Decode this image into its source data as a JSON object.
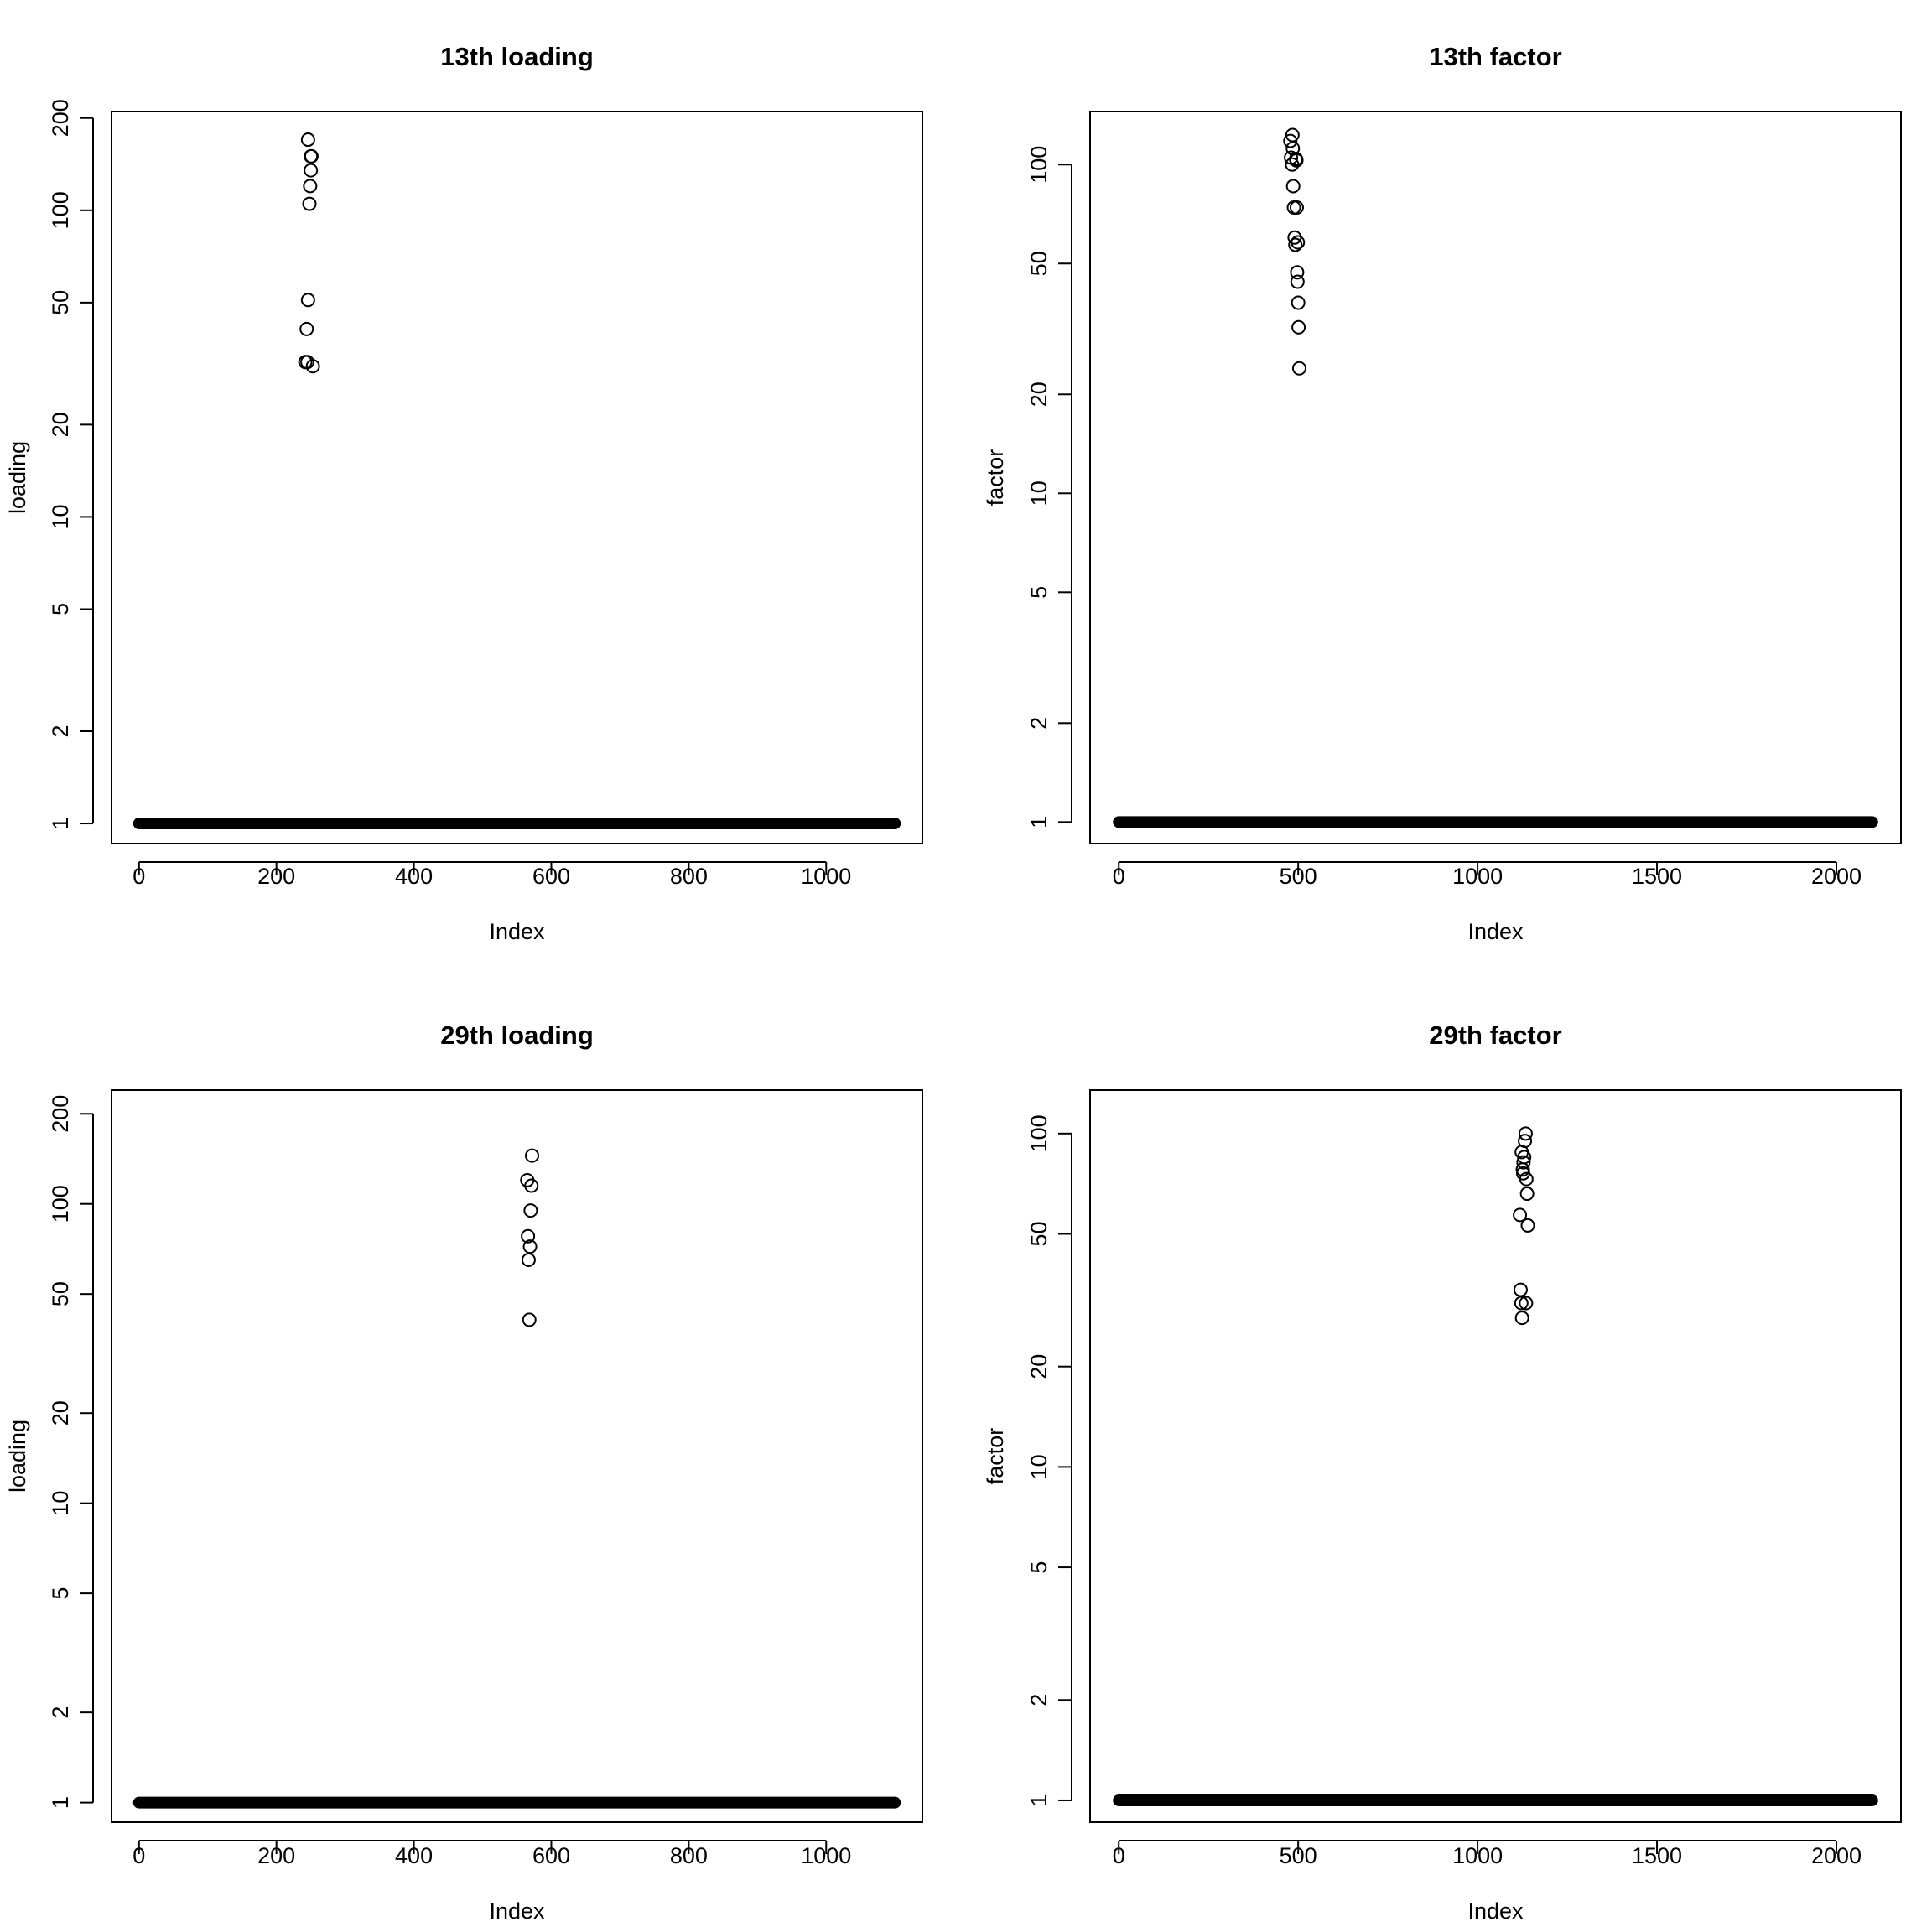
{
  "chart_data": [
    {
      "type": "scatter",
      "title": "13th loading",
      "xlabel": "Index",
      "ylabel": "loading",
      "y_scale": "log",
      "x_ticks": [
        "0",
        "200",
        "400",
        "600",
        "800",
        "1000"
      ],
      "y_ticks": [
        "1",
        "2",
        "5",
        "10",
        "20",
        "50",
        "100",
        "200"
      ],
      "xlim": [
        -40,
        1140
      ],
      "ylim": [
        0.86,
        210
      ],
      "baseline": {
        "from": 0,
        "to": 1100,
        "value": 1
      },
      "points": {
        "x": [
          242,
          244,
          246,
          248,
          249,
          250,
          251,
          250,
          246,
          245,
          253
        ],
        "y": [
          32,
          41,
          51,
          105,
          120,
          135,
          150,
          150,
          170,
          32,
          31
        ]
      }
    },
    {
      "type": "scatter",
      "title": "13th factor",
      "xlabel": "Index",
      "ylabel": "factor",
      "y_scale": "log",
      "x_ticks": [
        "0",
        "500",
        "1000",
        "1500",
        "2000"
      ],
      "y_ticks": [
        "1",
        "2",
        "5",
        "10",
        "20",
        "50",
        "100"
      ],
      "xlim": [
        -80,
        2180
      ],
      "ylim": [
        0.86,
        145
      ],
      "baseline": {
        "from": 0,
        "to": 2100,
        "value": 1
      },
      "points": {
        "x": [
          478,
          480,
          483,
          485,
          486,
          488,
          490,
          492,
          494,
          495,
          496,
          497,
          498,
          499,
          500,
          501,
          503,
          484
        ],
        "y": [
          118,
          105,
          100,
          112,
          86,
          74,
          60,
          57,
          104,
          103,
          74,
          47,
          44,
          58,
          38,
          32,
          24,
          123
        ]
      }
    },
    {
      "type": "scatter",
      "title": "29th loading",
      "xlabel": "Index",
      "ylabel": "loading",
      "y_scale": "log",
      "x_ticks": [
        "0",
        "200",
        "400",
        "600",
        "800",
        "1000"
      ],
      "y_ticks": [
        "1",
        "2",
        "5",
        "10",
        "20",
        "50",
        "100",
        "200"
      ],
      "xlim": [
        -40,
        1140
      ],
      "ylim": [
        0.86,
        240
      ],
      "baseline": {
        "from": 0,
        "to": 1100,
        "value": 1
      },
      "points": {
        "x": [
          565,
          566,
          567,
          568,
          569,
          570,
          571,
          572
        ],
        "y": [
          120,
          78,
          65,
          41,
          72,
          95,
          115,
          145
        ]
      }
    },
    {
      "type": "scatter",
      "title": "29th factor",
      "xlabel": "Index",
      "ylabel": "factor",
      "y_scale": "log",
      "x_ticks": [
        "0",
        "500",
        "1000",
        "1500",
        "2000"
      ],
      "y_ticks": [
        "1",
        "2",
        "5",
        "10",
        "20",
        "50",
        "100"
      ],
      "xlim": [
        -80,
        2180
      ],
      "ylim": [
        0.86,
        135
      ],
      "baseline": {
        "from": 0,
        "to": 2100,
        "value": 1
      },
      "points": {
        "x": [
          1118,
          1120,
          1122,
          1124,
          1126,
          1128,
          1130,
          1132,
          1134,
          1136,
          1138,
          1140,
          1123,
          1127,
          1135
        ],
        "y": [
          57,
          34,
          31,
          28,
          78,
          82,
          85,
          95,
          100,
          73,
          66,
          53,
          88,
          76,
          31
        ]
      }
    }
  ]
}
